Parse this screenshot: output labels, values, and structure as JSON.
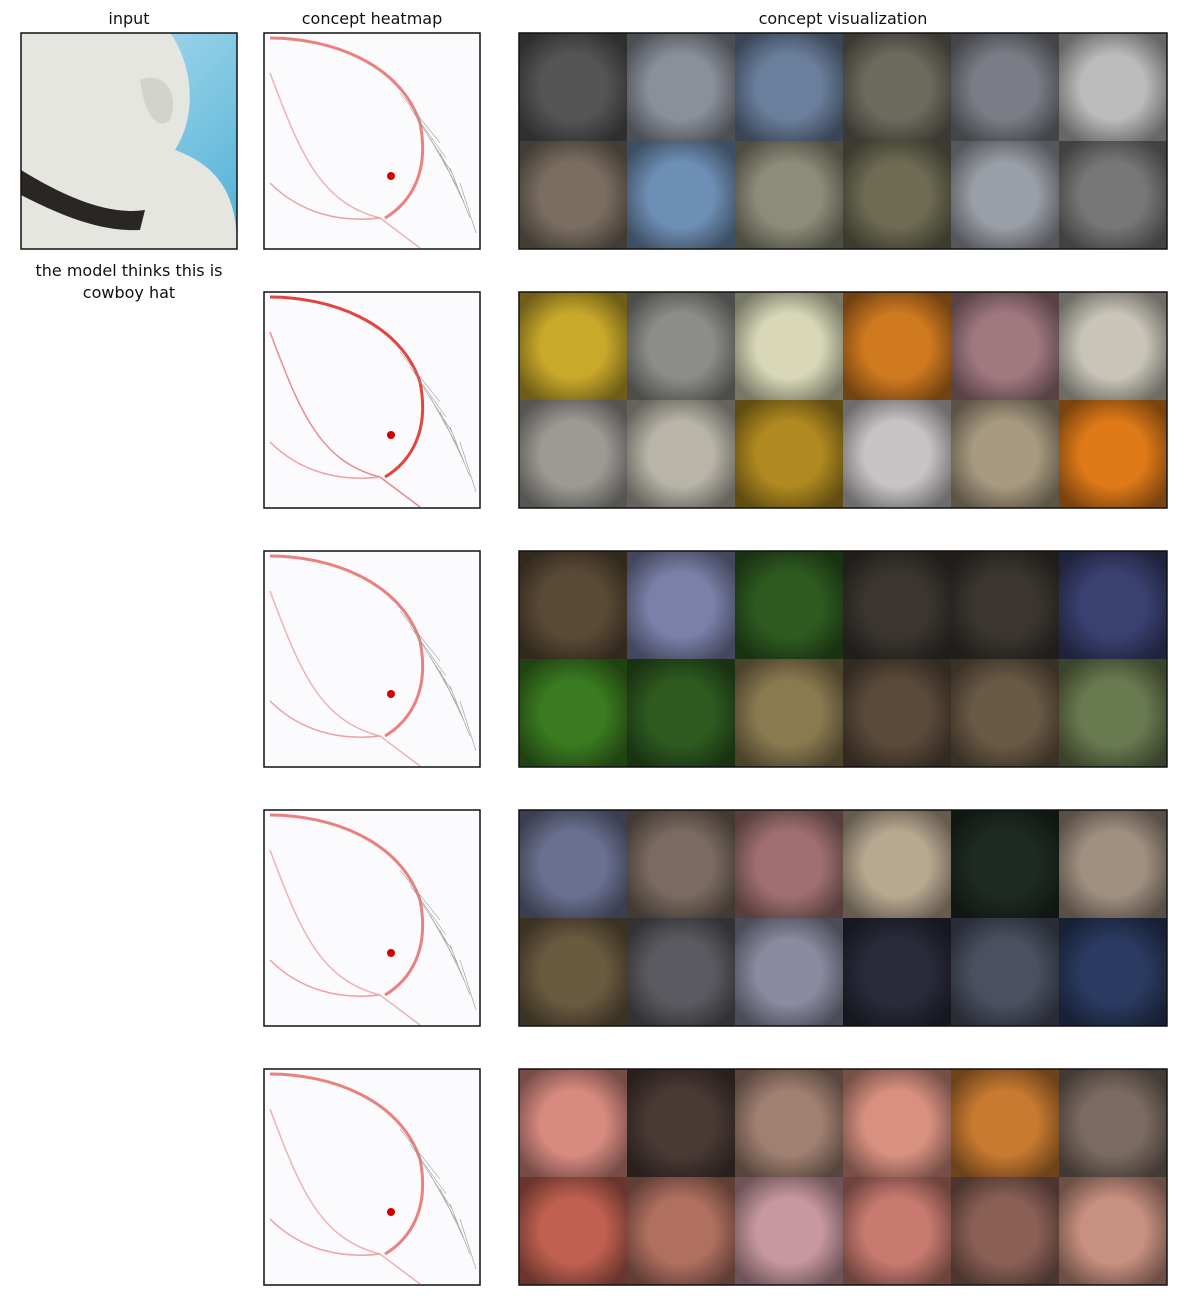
{
  "header": {
    "input_title": "input",
    "heatmap_title": "concept heatmap",
    "visualization_title": "concept visualization"
  },
  "caption": {
    "lines": [
      "the model thinks this is",
      "cowboy hat"
    ]
  }
}
